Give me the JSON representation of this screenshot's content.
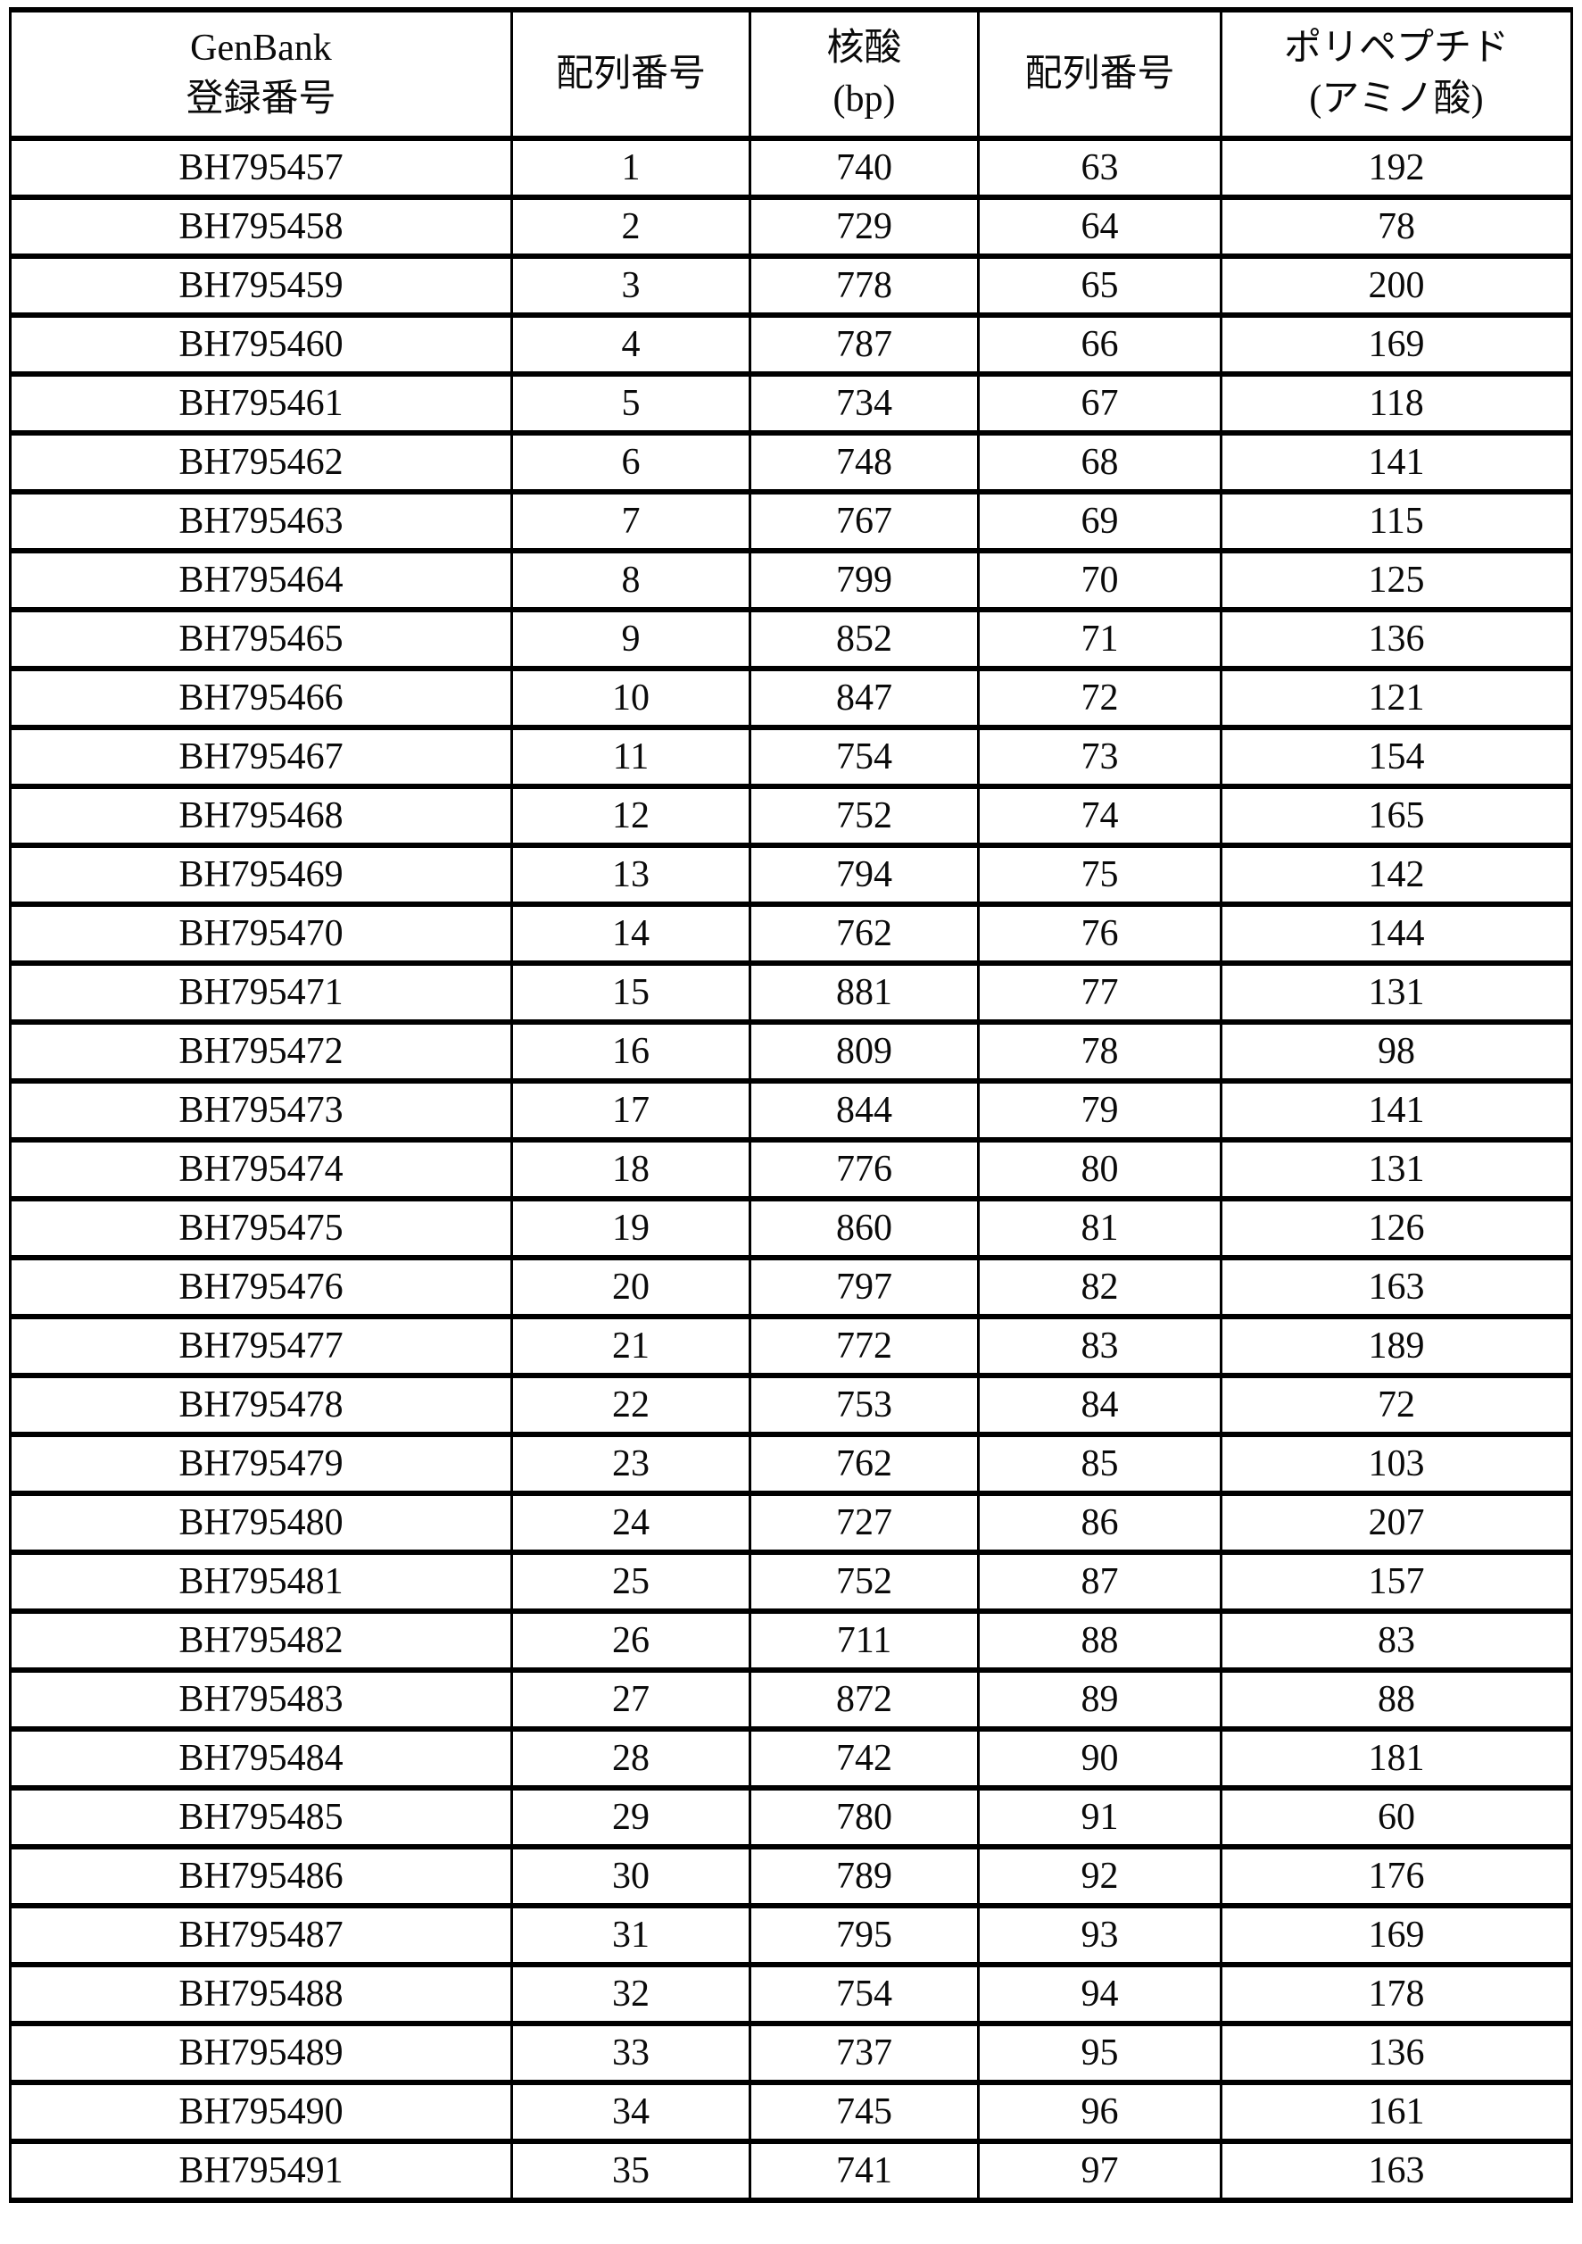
{
  "table": {
    "headers": [
      {
        "name": "genbank-accession-header",
        "lines": [
          "GenBank",
          "登録番号"
        ]
      },
      {
        "name": "sequence-number-header",
        "lines": [
          "配列番号"
        ]
      },
      {
        "name": "nucleic-acid-bp-header",
        "lines": [
          "核酸",
          "(bp)"
        ]
      },
      {
        "name": "sequence-number-2-header",
        "lines": [
          "配列番号"
        ]
      },
      {
        "name": "polypeptide-aa-header",
        "lines": [
          "ポリペプチド",
          "(アミノ酸)"
        ]
      }
    ],
    "rows": [
      [
        "BH795457",
        "1",
        "740",
        "63",
        "192"
      ],
      [
        "BH795458",
        "2",
        "729",
        "64",
        "78"
      ],
      [
        "BH795459",
        "3",
        "778",
        "65",
        "200"
      ],
      [
        "BH795460",
        "4",
        "787",
        "66",
        "169"
      ],
      [
        "BH795461",
        "5",
        "734",
        "67",
        "118"
      ],
      [
        "BH795462",
        "6",
        "748",
        "68",
        "141"
      ],
      [
        "BH795463",
        "7",
        "767",
        "69",
        "115"
      ],
      [
        "BH795464",
        "8",
        "799",
        "70",
        "125"
      ],
      [
        "BH795465",
        "9",
        "852",
        "71",
        "136"
      ],
      [
        "BH795466",
        "10",
        "847",
        "72",
        "121"
      ],
      [
        "BH795467",
        "11",
        "754",
        "73",
        "154"
      ],
      [
        "BH795468",
        "12",
        "752",
        "74",
        "165"
      ],
      [
        "BH795469",
        "13",
        "794",
        "75",
        "142"
      ],
      [
        "BH795470",
        "14",
        "762",
        "76",
        "144"
      ],
      [
        "BH795471",
        "15",
        "881",
        "77",
        "131"
      ],
      [
        "BH795472",
        "16",
        "809",
        "78",
        "98"
      ],
      [
        "BH795473",
        "17",
        "844",
        "79",
        "141"
      ],
      [
        "BH795474",
        "18",
        "776",
        "80",
        "131"
      ],
      [
        "BH795475",
        "19",
        "860",
        "81",
        "126"
      ],
      [
        "BH795476",
        "20",
        "797",
        "82",
        "163"
      ],
      [
        "BH795477",
        "21",
        "772",
        "83",
        "189"
      ],
      [
        "BH795478",
        "22",
        "753",
        "84",
        "72"
      ],
      [
        "BH795479",
        "23",
        "762",
        "85",
        "103"
      ],
      [
        "BH795480",
        "24",
        "727",
        "86",
        "207"
      ],
      [
        "BH795481",
        "25",
        "752",
        "87",
        "157"
      ],
      [
        "BH795482",
        "26",
        "711",
        "88",
        "83"
      ],
      [
        "BH795483",
        "27",
        "872",
        "89",
        "88"
      ],
      [
        "BH795484",
        "28",
        "742",
        "90",
        "181"
      ],
      [
        "BH795485",
        "29",
        "780",
        "91",
        "60"
      ],
      [
        "BH795486",
        "30",
        "789",
        "92",
        "176"
      ],
      [
        "BH795487",
        "31",
        "795",
        "93",
        "169"
      ],
      [
        "BH795488",
        "32",
        "754",
        "94",
        "178"
      ],
      [
        "BH795489",
        "33",
        "737",
        "95",
        "136"
      ],
      [
        "BH795490",
        "34",
        "745",
        "96",
        "161"
      ],
      [
        "BH795491",
        "35",
        "741",
        "97",
        "163"
      ]
    ],
    "cell_names": [
      "genbank-accession-cell",
      "sequence-number-cell",
      "nucleic-acid-bp-cell",
      "sequence-number-2-cell",
      "polypeptide-aa-cell"
    ],
    "colors": {
      "border": "#000000",
      "text": "#0a0a0a",
      "background": "#ffffff"
    }
  }
}
